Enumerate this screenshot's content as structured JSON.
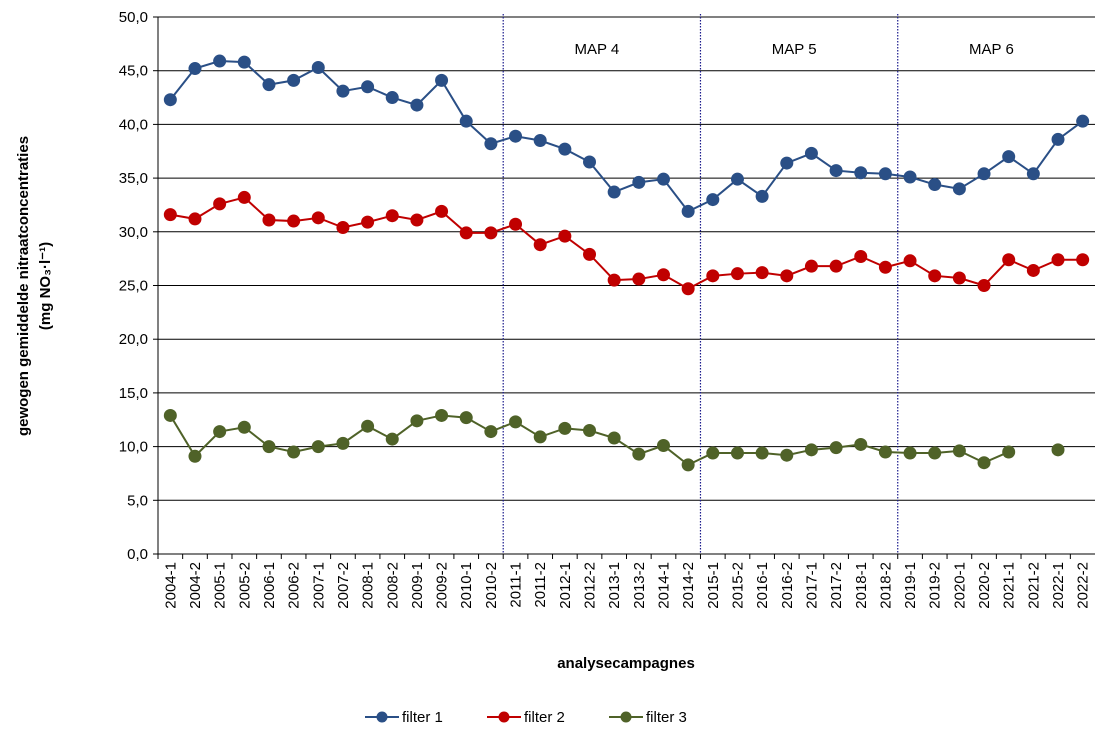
{
  "chart_data": {
    "type": "line",
    "y_label": [
      "gewogen gemiddelde nitraatconcentraties",
      "(mg NO₃·l⁻¹)"
    ],
    "x_label": "analysecampagnes",
    "categories": [
      "2004-1",
      "2004-2",
      "2005-1",
      "2005-2",
      "2006-1",
      "2006-2",
      "2007-1",
      "2007-2",
      "2008-1",
      "2008-2",
      "2009-1",
      "2009-2",
      "2010-1",
      "2010-2",
      "2011-1",
      "2011-2",
      "2012-1",
      "2012-2",
      "2013-1",
      "2013-2",
      "2014-1",
      "2014-2",
      "2015-1",
      "2015-2",
      "2016-1",
      "2016-2",
      "2017-1",
      "2017-2",
      "2018-1",
      "2018-2",
      "2019-1",
      "2019-2",
      "2020-1",
      "2020-2",
      "2021-1",
      "2021-2",
      "2022-1",
      "2022-2"
    ],
    "series": [
      {
        "name": "filter 1",
        "color": "#2a4f86",
        "values": [
          42.3,
          45.2,
          45.9,
          45.8,
          43.7,
          44.1,
          45.3,
          43.1,
          43.5,
          42.5,
          41.8,
          44.1,
          40.3,
          38.2,
          38.9,
          38.5,
          37.7,
          36.5,
          33.7,
          34.6,
          34.9,
          31.9,
          33.0,
          34.9,
          33.3,
          36.4,
          37.3,
          35.7,
          35.5,
          35.4,
          35.1,
          34.4,
          34.0,
          35.4,
          37.0,
          35.4,
          38.6,
          40.3
        ]
      },
      {
        "name": "filter 2",
        "color": "#c00000",
        "values": [
          31.6,
          31.2,
          32.6,
          33.2,
          31.1,
          31.0,
          31.3,
          30.4,
          30.9,
          31.5,
          31.1,
          31.9,
          29.9,
          29.9,
          30.7,
          28.8,
          29.6,
          27.9,
          25.5,
          25.6,
          26.0,
          24.7,
          25.9,
          26.1,
          26.2,
          25.9,
          26.8,
          26.8,
          27.7,
          26.7,
          27.3,
          25.9,
          25.7,
          25.0,
          27.4,
          26.4,
          27.4,
          27.4
        ]
      },
      {
        "name": "filter 3",
        "color": "#4f6228",
        "values": [
          12.9,
          9.1,
          11.4,
          11.8,
          10.0,
          9.5,
          10.0,
          10.3,
          11.9,
          10.7,
          12.4,
          12.9,
          12.7,
          11.4,
          12.3,
          10.9,
          11.7,
          11.5,
          10.8,
          9.3,
          10.1,
          8.3,
          9.4,
          9.4,
          9.4,
          9.2,
          9.7,
          9.9,
          10.2,
          9.5,
          9.4,
          9.4,
          9.6,
          8.5,
          9.5,
          null,
          9.7,
          null
        ]
      }
    ],
    "ylim": [
      0,
      50
    ],
    "yticks": [
      {
        "value": 0,
        "label": "0,0"
      },
      {
        "value": 5,
        "label": "5,0"
      },
      {
        "value": 10,
        "label": "10,0"
      },
      {
        "value": 15,
        "label": "15,0"
      },
      {
        "value": 20,
        "label": "20,0"
      },
      {
        "value": 25,
        "label": "25,0"
      },
      {
        "value": 30,
        "label": "30,0"
      },
      {
        "value": 35,
        "label": "35,0"
      },
      {
        "value": 40,
        "label": "40,0"
      },
      {
        "value": 45,
        "label": "45,0"
      },
      {
        "value": 50,
        "label": "50,0"
      }
    ],
    "grid": true,
    "legend": "bottom",
    "annotations": [
      {
        "label": "MAP 4",
        "start": "2011-1"
      },
      {
        "label": "MAP 5",
        "start": "2015-1"
      },
      {
        "label": "MAP 6",
        "start": "2019-1"
      }
    ]
  }
}
